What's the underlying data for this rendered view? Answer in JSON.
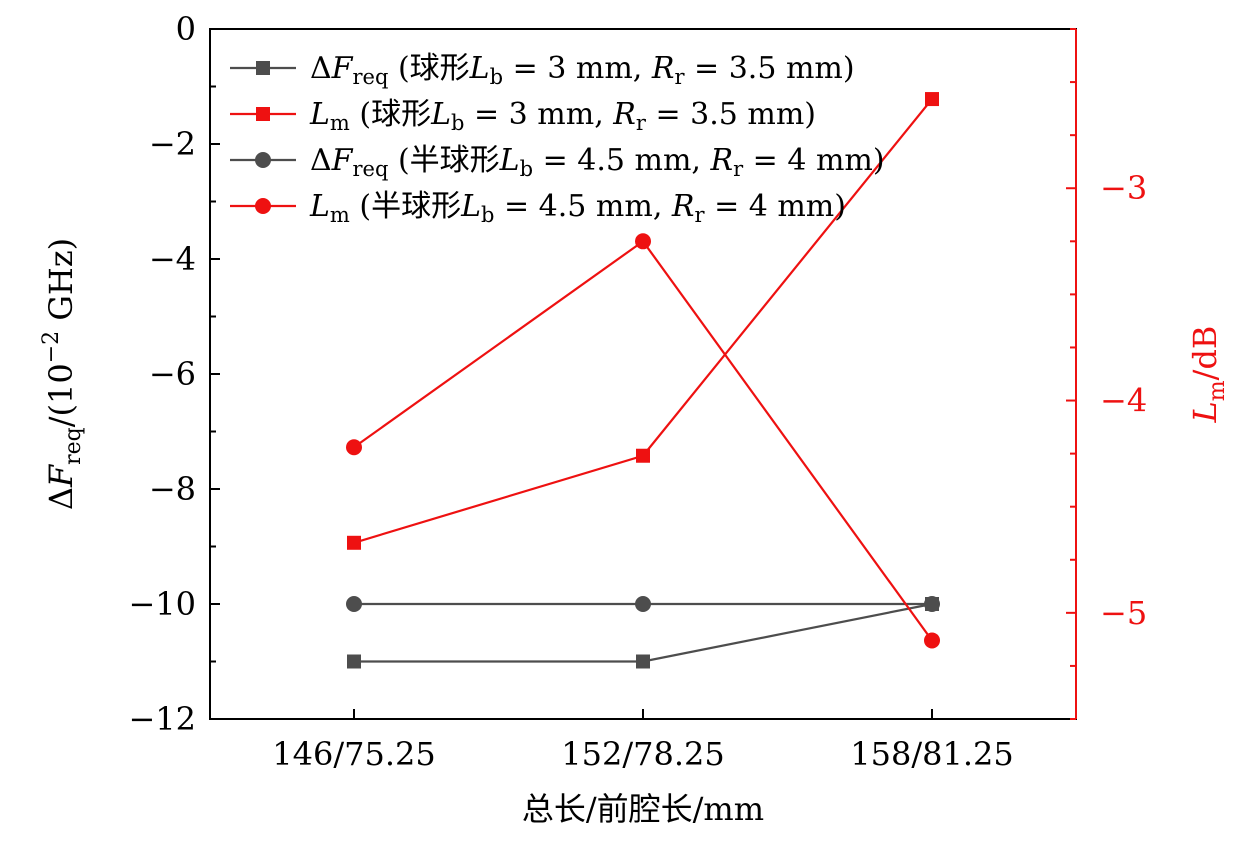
{
  "chart_data": {
    "type": "line",
    "categories": [
      "146/75.25",
      "152/78.25",
      "158/81.25"
    ],
    "xlabel": "总长/前腔长/mm",
    "ylabel_left": "ΔFreq/(10⁻² GHz)",
    "ylabel_right": "Lm/dB",
    "ylim_left": [
      -12,
      0
    ],
    "ylim_right": [
      -5.5,
      -2.25
    ],
    "yticks_left": [
      0,
      -2,
      -4,
      -6,
      -8,
      -10,
      -12
    ],
    "yticks_right": [
      -3,
      -4,
      -5
    ],
    "grid": false,
    "legend_position": "top-left",
    "series": [
      {
        "name": "ΔFreq (球形Lb = 3 mm, Rr = 3.5 mm)",
        "axis": "left",
        "marker": "square",
        "color": "#4d4d4d",
        "values": [
          -11,
          -11,
          -10
        ]
      },
      {
        "name": "Lm (球形Lb = 3 mm, Rr = 3.5 mm)",
        "axis": "right",
        "marker": "square",
        "color": "#ee1111",
        "values": [
          -4.67,
          -4.26,
          -2.58
        ]
      },
      {
        "name": "ΔFreq (半球形Lb = 4.5 mm, Rr = 4 mm)",
        "axis": "left",
        "marker": "circle",
        "color": "#4d4d4d",
        "values": [
          -10,
          -10,
          -10
        ]
      },
      {
        "name": "Lm (半球形Lb = 4.5 mm, Rr = 4 mm)",
        "axis": "right",
        "marker": "circle",
        "color": "#ee1111",
        "values": [
          -4.22,
          -3.25,
          -5.13
        ]
      }
    ]
  }
}
